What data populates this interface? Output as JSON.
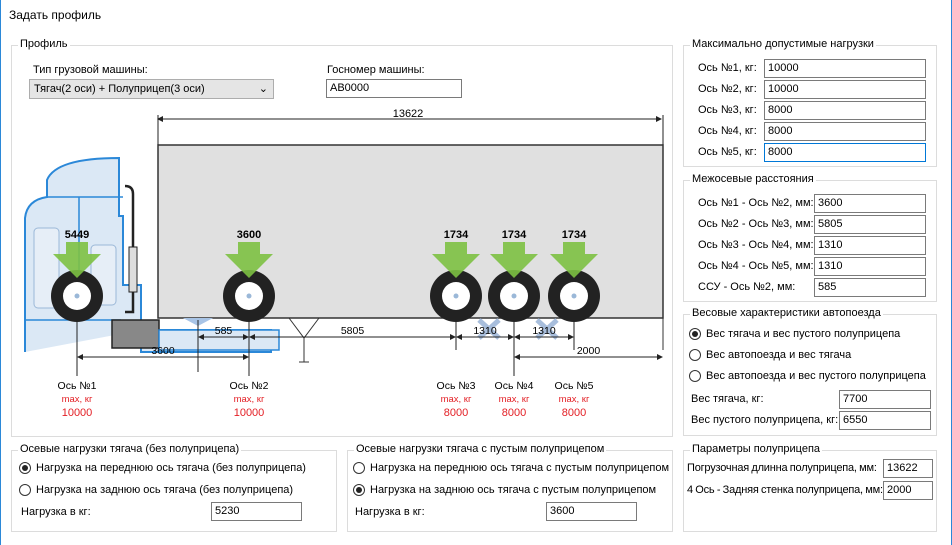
{
  "window": {
    "title": "Задать профиль"
  },
  "profile": {
    "group_label": "Профиль",
    "truck_type_label": "Тип грузовой машины:",
    "truck_type_value": "Тягач(2 оси) + Полуприцеп(3 оси)",
    "plate_label": "Госномер машины:",
    "plate_value": "АВ0000"
  },
  "diagram": {
    "total_length": "13622",
    "loads": [
      "5449",
      "3600",
      "1734",
      "1734",
      "1734"
    ],
    "dims": {
      "d585": "585",
      "d5805": "5805",
      "d1310a": "1310",
      "d1310b": "1310",
      "d3600": "3600",
      "d2000": "2000"
    },
    "axles": [
      {
        "name": "Ось №1",
        "max_label": "max, кг",
        "max": "10000"
      },
      {
        "name": "Ось №2",
        "max_label": "max, кг",
        "max": "10000"
      },
      {
        "name": "Ось №3",
        "max_label": "max, кг",
        "max": "8000"
      },
      {
        "name": "Ось №4",
        "max_label": "max, кг",
        "max": "8000"
      },
      {
        "name": "Ось №5",
        "max_label": "max, кг",
        "max": "8000"
      }
    ],
    "colors": {
      "cab": "#2b88d8",
      "arrow": "#7dc142",
      "max": "#e31e24",
      "trailer": "#e0e0e0"
    }
  },
  "max_loads": {
    "group_label": "Максимально допустимые нагрузки",
    "rows": [
      {
        "label": "Ось №1, кг:",
        "value": "10000"
      },
      {
        "label": "Ось №2, кг:",
        "value": "10000"
      },
      {
        "label": "Ось №3, кг:",
        "value": "8000"
      },
      {
        "label": "Ось №4, кг:",
        "value": "8000"
      },
      {
        "label": "Ось №5, кг:",
        "value": "8000"
      }
    ]
  },
  "distances": {
    "group_label": "Межосевые расстояния",
    "rows": [
      {
        "label": "Ось №1 - Ось №2, мм:",
        "value": "3600"
      },
      {
        "label": "Ось №2 - Ось №3, мм:",
        "value": "5805"
      },
      {
        "label": "Ось №3 - Ось №4, мм:",
        "value": "1310"
      },
      {
        "label": "Ось №4 - Ось №5, мм:",
        "value": "1310"
      },
      {
        "label": "ССУ - Ось №2, мм:",
        "value": "585"
      }
    ]
  },
  "weights": {
    "group_label": "Весовые характеристики автопоезда",
    "options": [
      "Вес тягача и вес пустого полуприцепа",
      "Вес автопоезда и вес тягача",
      "Вес автопоезда и вес пустого полуприцепа"
    ],
    "selected": 0,
    "rows": [
      {
        "label": "Вес тягача, кг:",
        "value": "7700"
      },
      {
        "label": "Вес пустого полуприцепа, кг:",
        "value": "6550"
      }
    ]
  },
  "trailer_params": {
    "group_label": "Параметры полуприцепа",
    "rows": [
      {
        "label": "Погрузочная длинна полуприцепа, мм:",
        "value": "13622"
      },
      {
        "label": "4 Ось - Задняя стенка полуприцепа, мм:",
        "value": "2000"
      }
    ]
  },
  "tractor_loads": {
    "group_label": "Осевые нагрузки тягача (без полуприцепа)",
    "options": [
      "Нагрузка на переднюю ось тягача (без полуприцепа)",
      "Нагрузка на заднюю ось тягача (без полуприцепа)"
    ],
    "selected": 0,
    "load_label": "Нагрузка в кг:",
    "load_value": "5230"
  },
  "tractor_empty_loads": {
    "group_label": "Осевые нагрузки тягача с пустым полуприцепом",
    "options": [
      "Нагрузка на переднюю ось тягача с пустым полуприцепом",
      "Нагрузка на заднюю ось тягача с пустым полуприцепом"
    ],
    "selected": 1,
    "load_label": "Нагрузка в кг:",
    "load_value": "3600"
  }
}
